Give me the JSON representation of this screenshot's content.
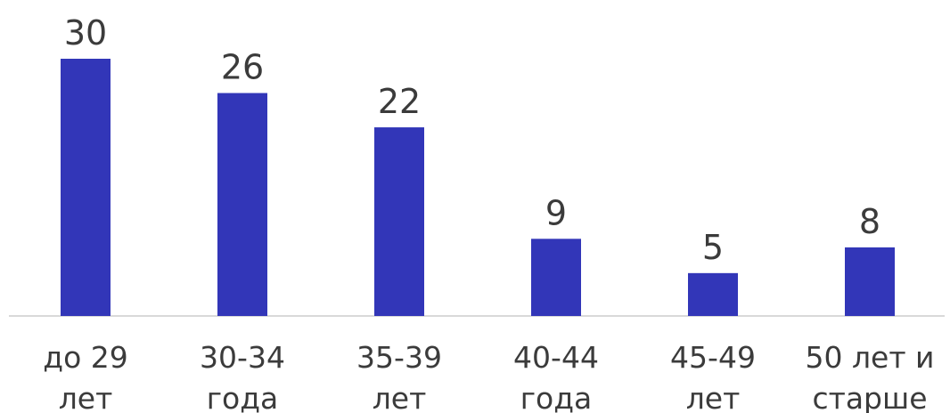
{
  "chart_data": {
    "type": "bar",
    "categories": [
      [
        "до 29",
        "лет"
      ],
      [
        "30-34",
        "года"
      ],
      [
        "35-39",
        "лет"
      ],
      [
        "40-44",
        "года"
      ],
      [
        "45-49",
        "лет"
      ],
      [
        "50 лет и",
        "старше"
      ]
    ],
    "values": [
      30,
      26,
      22,
      9,
      5,
      8
    ],
    "ylim": [
      0,
      30
    ],
    "grid": false,
    "legend": "none",
    "colors": {
      "bar": "#3236B8",
      "axis": "#D9D9D9",
      "text": "#3B3B3B"
    }
  }
}
